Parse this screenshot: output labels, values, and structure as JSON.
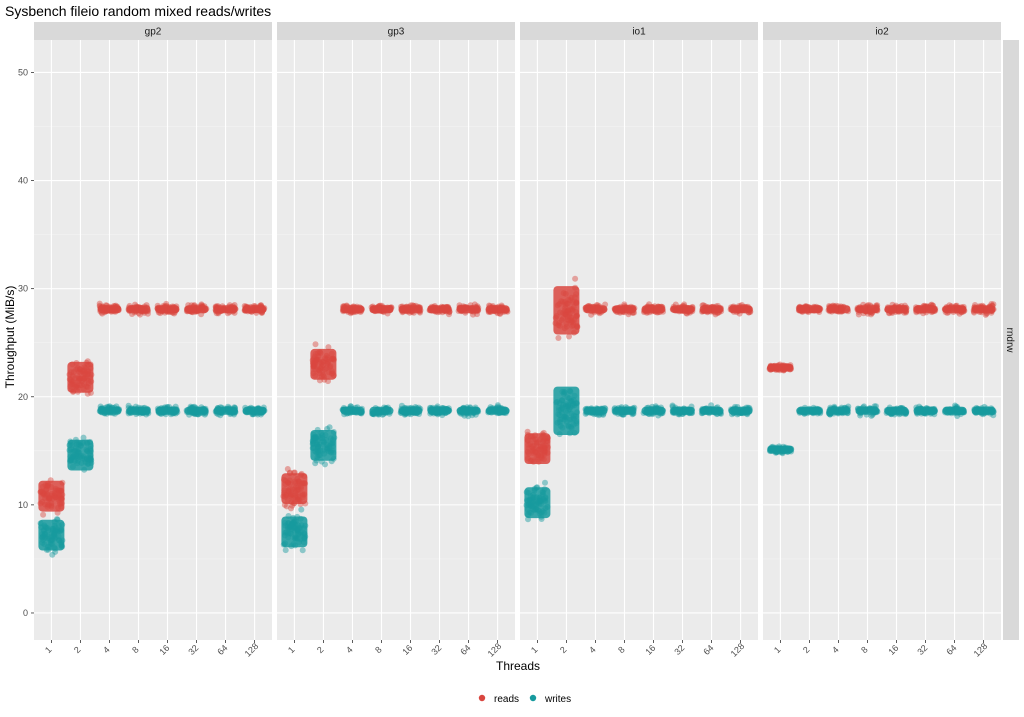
{
  "chart_data": {
    "type": "scatter",
    "title": "Sysbench fileio random mixed reads/writes",
    "xlabel": "Threads",
    "ylabel": "Throughput (MiB/s)",
    "x_scale": "categorical",
    "categories": [
      "1",
      "2",
      "4",
      "8",
      "16",
      "32",
      "64",
      "128"
    ],
    "ylim": [
      -2.5,
      53
    ],
    "y_ticks": [
      0,
      10,
      20,
      30,
      40,
      50
    ],
    "grid": true,
    "legend_position": "bottom",
    "facet_column_labels": [
      "gp2",
      "gp3",
      "io1",
      "io2"
    ],
    "facet_row_label": "rndrw",
    "series_colors": {
      "reads": "#D9463F",
      "writes": "#169A9E"
    },
    "series_names": [
      "reads",
      "writes"
    ],
    "panels": [
      {
        "panel": "gp2",
        "reads": {
          "1": 10.8,
          "2": 21.8,
          "4": 28.1,
          "8": 28.1,
          "16": 28.1,
          "32": 28.1,
          "64": 28.1,
          "128": 28.1
        },
        "writes": {
          "1": 7.2,
          "2": 14.6,
          "4": 18.7,
          "8": 18.7,
          "16": 18.7,
          "32": 18.7,
          "64": 18.7,
          "128": 18.7
        }
      },
      {
        "panel": "gp3",
        "reads": {
          "1": 11.5,
          "2": 23.0,
          "4": 28.1,
          "8": 28.1,
          "16": 28.1,
          "32": 28.1,
          "64": 28.1,
          "128": 28.1
        },
        "writes": {
          "1": 7.5,
          "2": 15.5,
          "4": 18.7,
          "8": 18.7,
          "16": 18.7,
          "32": 18.7,
          "64": 18.7,
          "128": 18.7
        }
      },
      {
        "panel": "io1",
        "reads": {
          "1": 15.2,
          "2": 28.0,
          "4": 28.1,
          "8": 28.1,
          "16": 28.1,
          "32": 28.1,
          "64": 28.1,
          "128": 28.1
        },
        "writes": {
          "1": 10.2,
          "2": 18.7,
          "4": 18.7,
          "8": 18.7,
          "16": 18.7,
          "32": 18.7,
          "64": 18.7,
          "128": 18.7
        }
      },
      {
        "panel": "io2",
        "reads": {
          "1": 22.7,
          "2": 28.1,
          "4": 28.1,
          "8": 28.1,
          "16": 28.1,
          "32": 28.1,
          "64": 28.1,
          "128": 28.1
        },
        "writes": {
          "1": 15.1,
          "2": 18.7,
          "4": 18.7,
          "8": 18.7,
          "16": 18.7,
          "32": 18.7,
          "64": 18.7,
          "128": 18.7
        }
      }
    ]
  }
}
